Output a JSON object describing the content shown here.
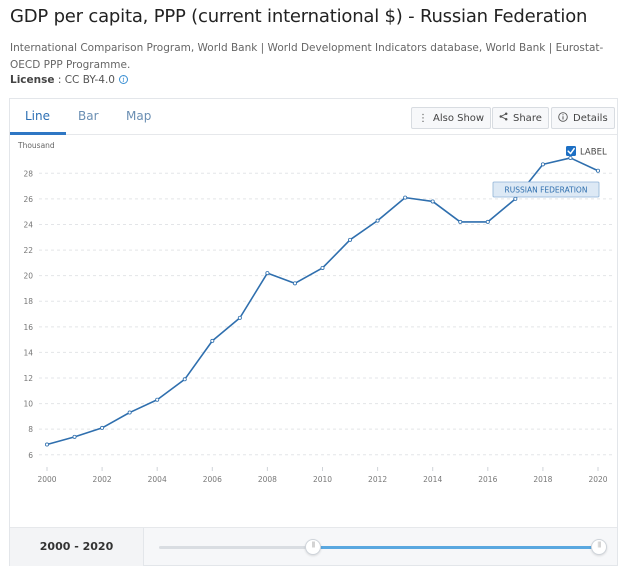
{
  "header": {
    "title": "GDP per capita, PPP (current international $) - Russian Federation",
    "sources": "International Comparison Program, World Bank | World Development Indicators database, World Bank | Eurostat-OECD PPP Programme.",
    "license_label": "License",
    "license_value": " : CC BY-4.0"
  },
  "tabs": [
    {
      "label": "Line",
      "active": true
    },
    {
      "label": "Bar",
      "active": false
    },
    {
      "label": "Map",
      "active": false
    }
  ],
  "toolbar": {
    "also_show": "Also Show",
    "share": "Share",
    "details": "Details"
  },
  "chart_data": {
    "type": "line",
    "ylabel": "Thousand",
    "label_toggle": "LABEL",
    "label_checked": true,
    "series": [
      {
        "name": "RUSSIAN FEDERATION",
        "color": "#2f6fae",
        "x": [
          2000,
          2001,
          2002,
          2003,
          2004,
          2005,
          2006,
          2007,
          2008,
          2009,
          2010,
          2011,
          2012,
          2013,
          2014,
          2015,
          2016,
          2017,
          2018,
          2019,
          2020
        ],
        "values": [
          6.8,
          7.4,
          8.1,
          9.3,
          10.3,
          11.9,
          14.9,
          16.7,
          20.2,
          19.4,
          20.6,
          22.8,
          24.3,
          26.1,
          25.8,
          24.2,
          24.2,
          26.0,
          28.7,
          29.2,
          28.2
        ]
      }
    ],
    "yticks": [
      "6",
      "8",
      "10",
      "12",
      "14",
      "16",
      "18",
      "20",
      "22",
      "24",
      "26",
      "28"
    ],
    "xticks": [
      "2000",
      "2002",
      "2004",
      "2006",
      "2008",
      "2010",
      "2012",
      "2014",
      "2016",
      "2018",
      "2020"
    ],
    "ylim": [
      5.2,
      29.9
    ],
    "xlim": [
      2000,
      2020
    ],
    "grid": true
  },
  "footer": {
    "range_label": "2000 - 2020",
    "slider_start": 0.35,
    "slider_end": 1.0
  }
}
